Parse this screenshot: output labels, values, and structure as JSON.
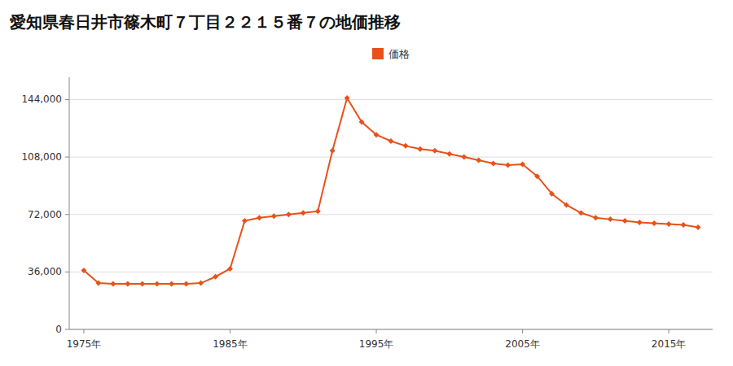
{
  "chart_data": {
    "type": "line",
    "title": "愛知県春日井市篠木町７丁目２２１５番７の地価推移",
    "x": [
      1975,
      1976,
      1977,
      1978,
      1979,
      1980,
      1981,
      1982,
      1983,
      1984,
      1985,
      1986,
      1987,
      1988,
      1989,
      1990,
      1991,
      1992,
      1993,
      1994,
      1995,
      1996,
      1997,
      1998,
      1999,
      2000,
      2001,
      2002,
      2003,
      2004,
      2005,
      2006,
      2007,
      2008,
      2009,
      2010,
      2011,
      2012,
      2013,
      2014,
      2015,
      2016,
      2017
    ],
    "series": [
      {
        "name": "価格",
        "color": "#E8521A",
        "marker": "diamond",
        "values": [
          37000,
          29000,
          28500,
          28500,
          28500,
          28500,
          28500,
          28500,
          29000,
          33000,
          38000,
          68000,
          70000,
          71000,
          72000,
          73000,
          74000,
          112000,
          145000,
          130000,
          122000,
          118000,
          115000,
          113000,
          112000,
          110000,
          108000,
          106000,
          104000,
          103000,
          103500,
          96000,
          85000,
          78000,
          73000,
          70000,
          69000,
          68000,
          67000,
          66500,
          66000,
          65500,
          64000
        ]
      }
    ],
    "xlim": [
      1974,
      2018
    ],
    "xticks": [
      {
        "value": 1975,
        "label": "1975年"
      },
      {
        "value": 1985,
        "label": "1985年"
      },
      {
        "value": 1995,
        "label": "1995年"
      },
      {
        "value": 2005,
        "label": "2005年"
      },
      {
        "value": 2015,
        "label": "2015年"
      }
    ],
    "ylim": [
      0,
      158000
    ],
    "yticks": [
      0,
      {
        "value": 36000,
        "label": "36,000"
      },
      {
        "value": 72000,
        "label": "72,000"
      },
      {
        "value": 108000,
        "label": "108,000"
      },
      {
        "value": 144000,
        "label": "144,000"
      }
    ],
    "grid": true,
    "legend": "top"
  }
}
